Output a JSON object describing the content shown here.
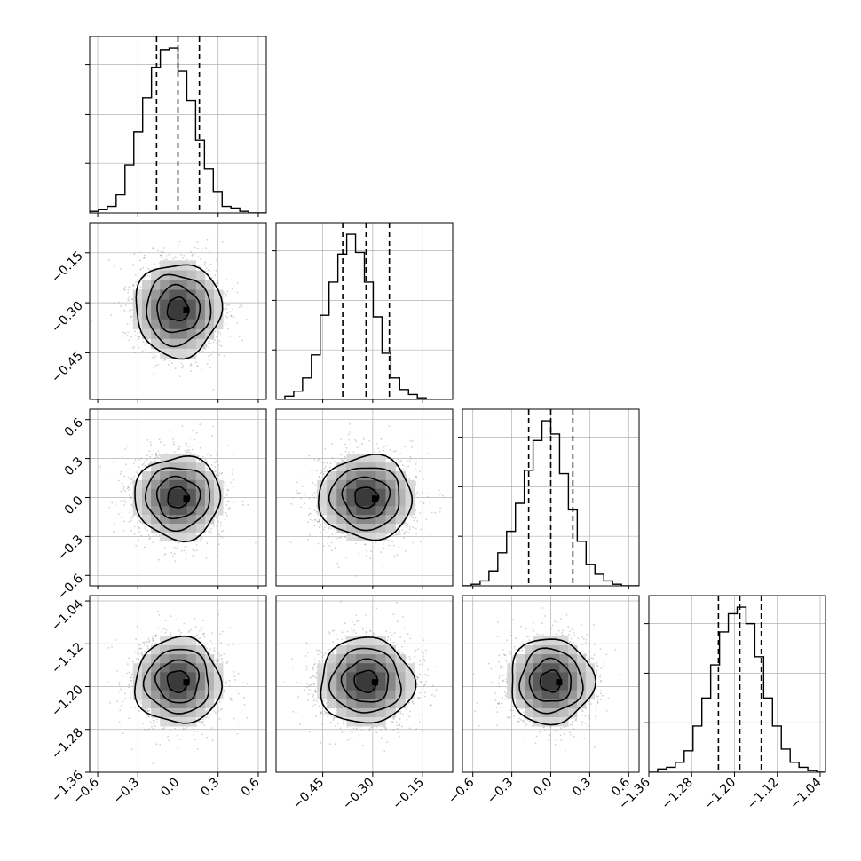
{
  "chart_data": {
    "type": "corner",
    "title": "",
    "params": [
      {
        "ticks": [
          -0.6,
          -0.3,
          0.0,
          0.3,
          0.6
        ],
        "tick_labels": [
          "−0.6",
          "−0.3",
          "0.0",
          "0.3",
          "0.6"
        ],
        "range": [
          -0.66,
          0.66
        ],
        "quantiles": [
          -0.16,
          0.0,
          0.16
        ]
      },
      {
        "ticks": [
          -0.45,
          -0.3,
          -0.15
        ],
        "tick_labels": [
          "−0.45",
          "−0.30",
          "−0.15"
        ],
        "range": [
          -0.59,
          -0.06
        ],
        "quantiles": [
          -0.39,
          -0.32,
          -0.25
        ]
      },
      {
        "ticks": [
          -0.6,
          -0.3,
          0.0,
          0.3,
          0.6
        ],
        "tick_labels": [
          "−0.6",
          "−0.3",
          "0.0",
          "0.3",
          "0.6"
        ],
        "range": [
          -0.68,
          0.68
        ],
        "quantiles": [
          -0.17,
          0.0,
          0.17
        ]
      },
      {
        "ticks": [
          -1.36,
          -1.28,
          -1.2,
          -1.12,
          -1.04
        ],
        "tick_labels": [
          "−1.36",
          "−1.28",
          "−1.20",
          "−1.12",
          "−1.04"
        ],
        "range": [
          -1.36,
          -1.03
        ],
        "quantiles": [
          -1.23,
          -1.19,
          -1.15
        ]
      }
    ],
    "histograms": [
      [
        0.01,
        0.02,
        0.04,
        0.11,
        0.29,
        0.49,
        0.7,
        0.88,
        0.99,
        1.0,
        0.86,
        0.68,
        0.44,
        0.27,
        0.13,
        0.04,
        0.03,
        0.01,
        0.0,
        0.0
      ],
      [
        0.0,
        0.02,
        0.05,
        0.13,
        0.27,
        0.51,
        0.71,
        0.88,
        1.0,
        0.89,
        0.71,
        0.5,
        0.28,
        0.13,
        0.06,
        0.03,
        0.01,
        0.0,
        0.0,
        0.0
      ],
      [
        0.0,
        0.01,
        0.03,
        0.09,
        0.2,
        0.33,
        0.5,
        0.7,
        0.88,
        1.0,
        0.92,
        0.68,
        0.46,
        0.27,
        0.13,
        0.07,
        0.03,
        0.01,
        0.0,
        0.0
      ],
      [
        0.0,
        0.02,
        0.03,
        0.06,
        0.13,
        0.28,
        0.45,
        0.65,
        0.85,
        0.96,
        1.0,
        0.9,
        0.7,
        0.45,
        0.28,
        0.14,
        0.06,
        0.03,
        0.01,
        0.0
      ]
    ],
    "histogram_ylim": [
      0,
      1.07
    ],
    "joint_panels": [
      {
        "x_param": 0,
        "y_param": 1,
        "center": [
          0.0,
          -0.32
        ],
        "spread": [
          0.16,
          0.07
        ]
      },
      {
        "x_param": 0,
        "y_param": 2,
        "center": [
          0.0,
          0.0
        ],
        "spread": [
          0.16,
          0.16
        ]
      },
      {
        "x_param": 1,
        "y_param": 2,
        "center": [
          -0.32,
          0.0
        ],
        "spread": [
          0.07,
          0.16
        ]
      },
      {
        "x_param": 0,
        "y_param": 3,
        "center": [
          0.0,
          -1.19
        ],
        "spread": [
          0.16,
          0.04
        ]
      },
      {
        "x_param": 1,
        "y_param": 3,
        "center": [
          -0.32,
          -1.19
        ],
        "spread": [
          0.07,
          0.04
        ]
      },
      {
        "x_param": 2,
        "y_param": 3,
        "center": [
          0.0,
          -1.19
        ],
        "spread": [
          0.16,
          0.04
        ]
      }
    ],
    "contour_levels_sigma": [
      0.5,
      1.0,
      1.5,
      2.0
    ],
    "colors": {
      "line": "#000000",
      "grid": "#b0b0b0",
      "scatter": "#9a9a9a",
      "density_max": "#000000",
      "density_min": "#ffffff"
    },
    "grid": true,
    "legend": "none"
  }
}
